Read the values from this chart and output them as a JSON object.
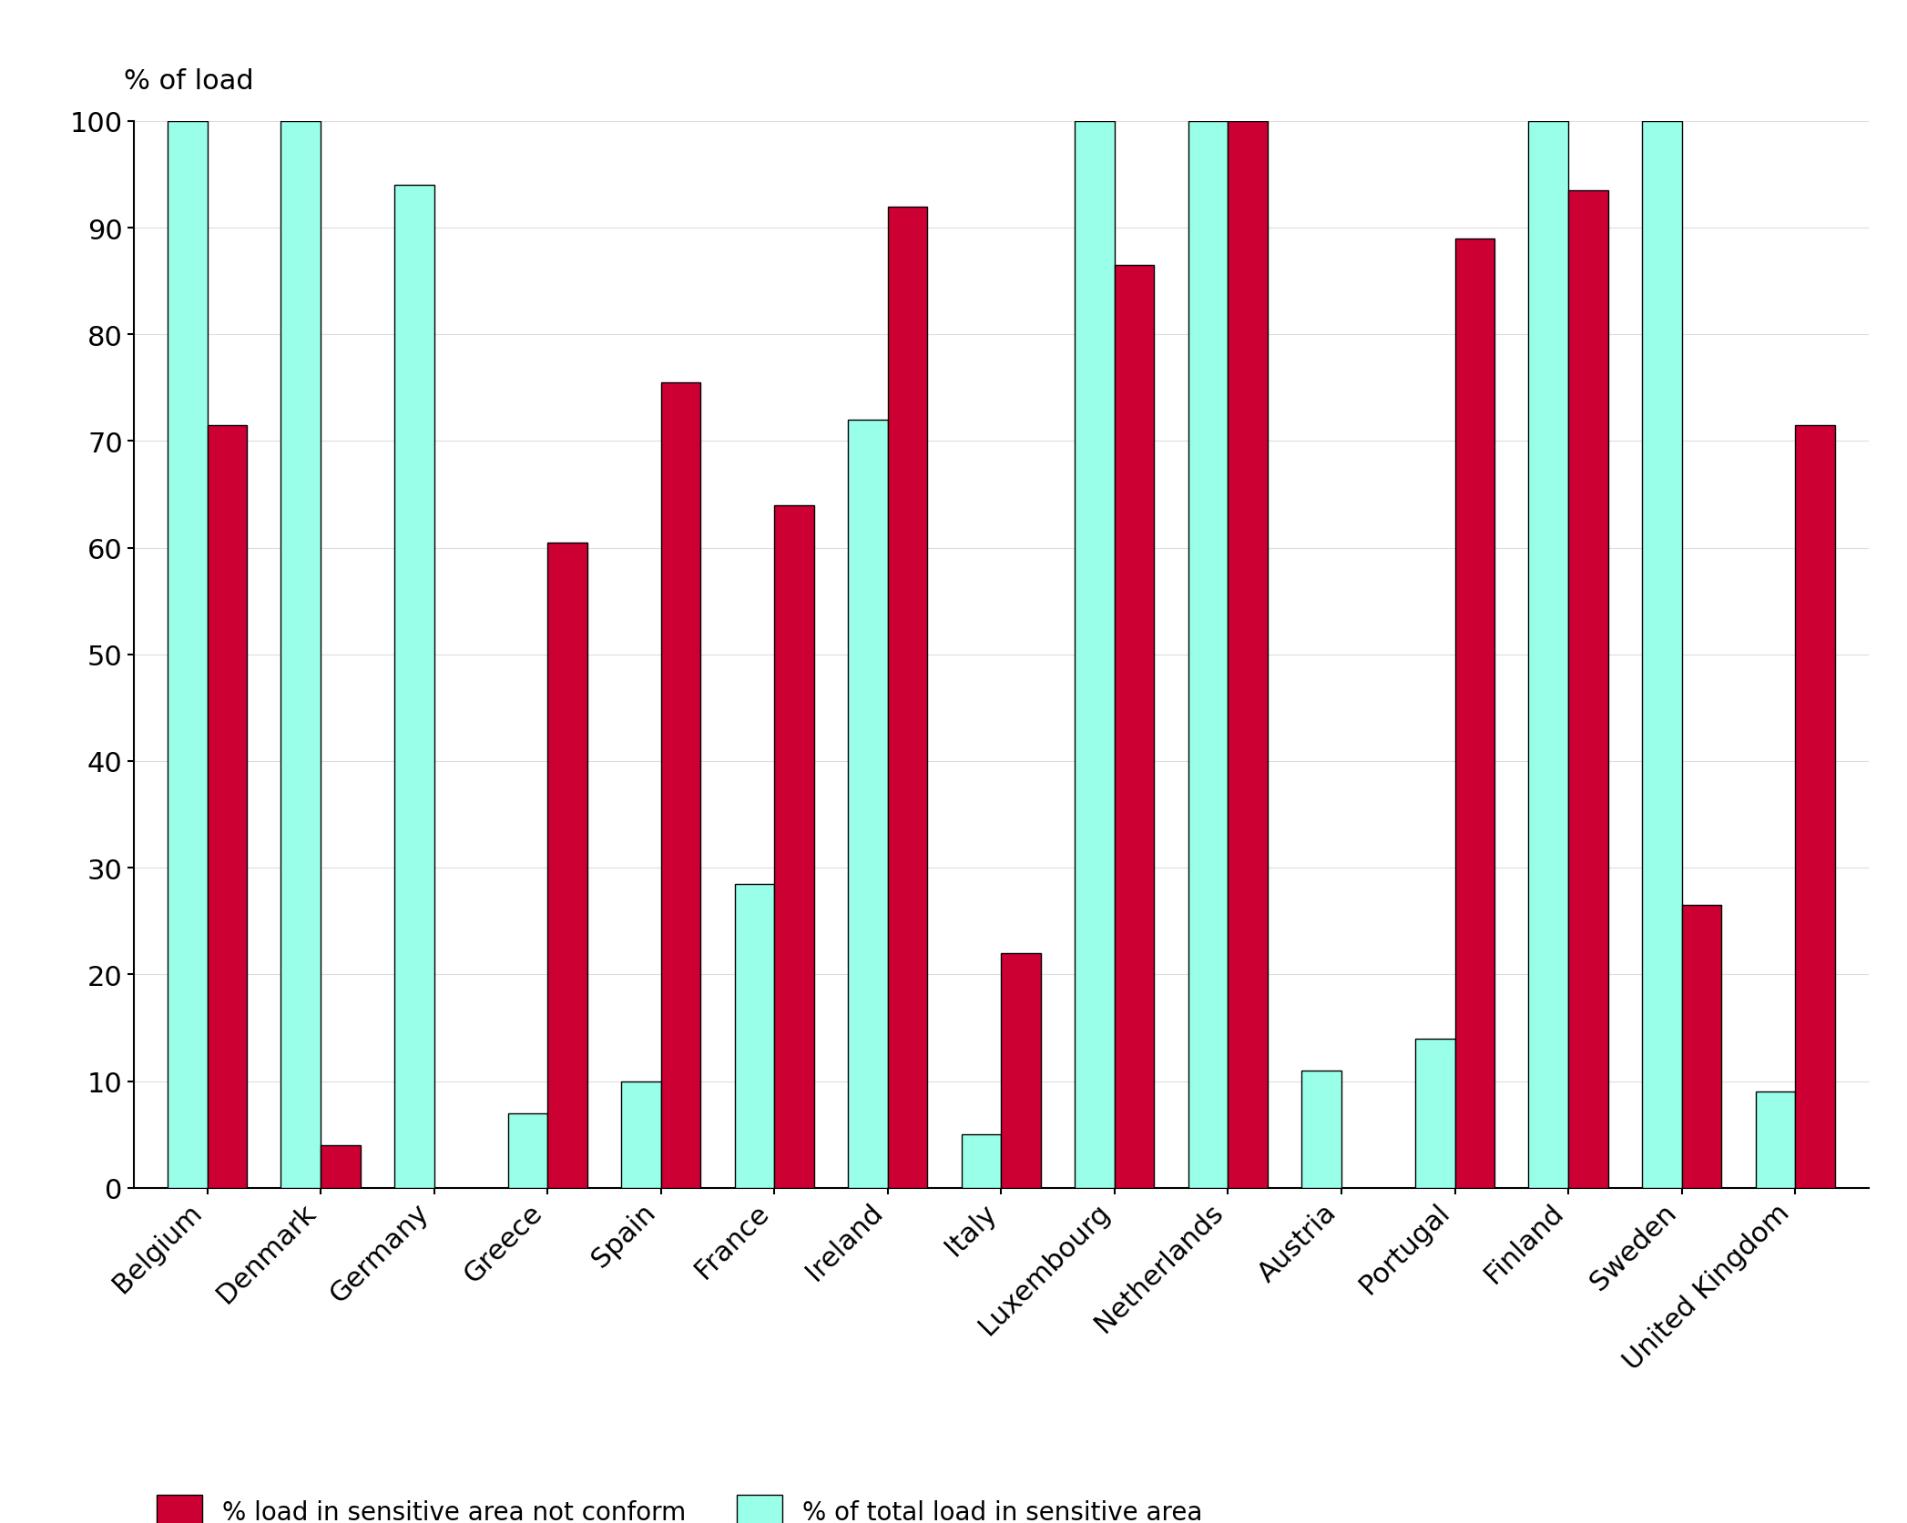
{
  "countries": [
    "Belgium",
    "Denmark",
    "Germany",
    "Greece",
    "Spain",
    "France",
    "Ireland",
    "Italy",
    "Luxembourg",
    "Netherlands",
    "Austria",
    "Portugal",
    "Finland",
    "Sweden",
    "United Kingdom"
  ],
  "not_conform": [
    71.5,
    4.0,
    0,
    60.5,
    75.5,
    64.0,
    92.0,
    22.0,
    86.5,
    100.0,
    0,
    89.0,
    93.5,
    26.5,
    71.5
  ],
  "total_sensitive": [
    100.0,
    100.0,
    94.0,
    7.0,
    10.0,
    28.5,
    72.0,
    5.0,
    100.0,
    100.0,
    11.0,
    14.0,
    100.0,
    100.0,
    9.0
  ],
  "color_not_conform": "#cc0033",
  "color_total_sensitive": "#99ffe8",
  "top_label": "% of load",
  "ylim": [
    0,
    100
  ],
  "yticks": [
    0,
    10,
    20,
    30,
    40,
    50,
    60,
    70,
    80,
    90,
    100
  ],
  "legend_not_conform": "% load in sensitive area not conform",
  "legend_total_sensitive": "% of total load in sensitive area",
  "bar_width": 0.35,
  "background_color": "#ffffff",
  "axes_color": "#000000",
  "edge_color": "#000000",
  "grid_color": "#dddddd"
}
